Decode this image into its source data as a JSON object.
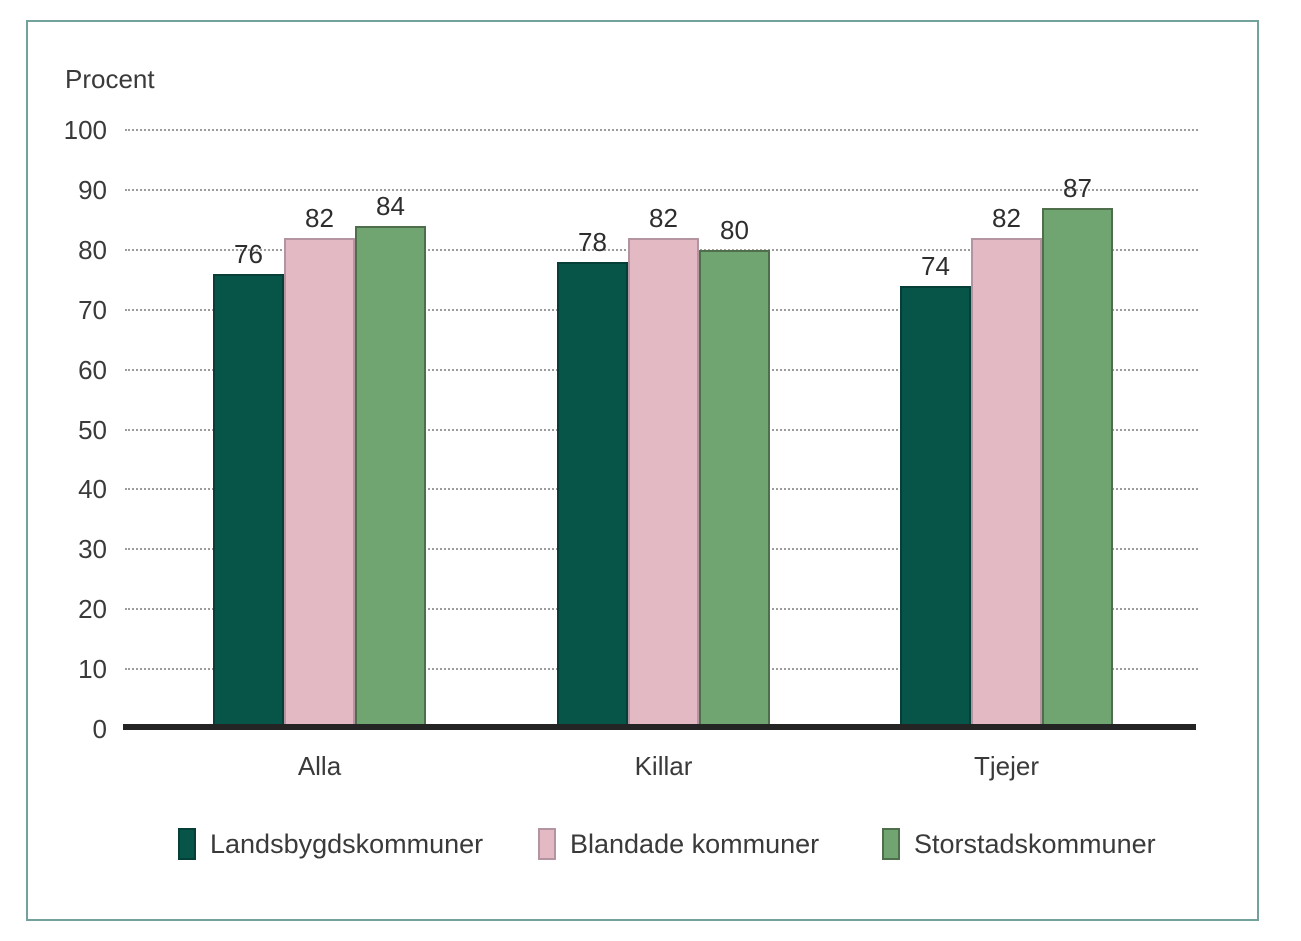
{
  "colors": {
    "frame_border": "#73a19b",
    "axis_line": "#242424",
    "gridline": "#9c9c9c",
    "text": "#3a3a3a"
  },
  "chart_data": {
    "type": "bar",
    "title": "",
    "ylabel": "Procent",
    "xlabel": "",
    "categories": [
      "Alla",
      "Killar",
      "Tjejer"
    ],
    "series": [
      {
        "name": "Landsbygdskommuner",
        "color": "#075449",
        "border_color": "#053f37",
        "values": [
          76,
          78,
          74
        ]
      },
      {
        "name": "Blandade kommuner",
        "color": "#e3bac4",
        "border_color": "#b494a0",
        "values": [
          82,
          82,
          82
        ]
      },
      {
        "name": "Storstadskommuner",
        "color": "#70a571",
        "border_color": "#4f6f4c",
        "values": [
          84,
          80,
          87
        ]
      }
    ],
    "ylim": [
      0,
      100
    ],
    "ytick_step": 10,
    "grid": "horizontal-dotted",
    "legend_position": "bottom",
    "bar_value_labels": true
  }
}
